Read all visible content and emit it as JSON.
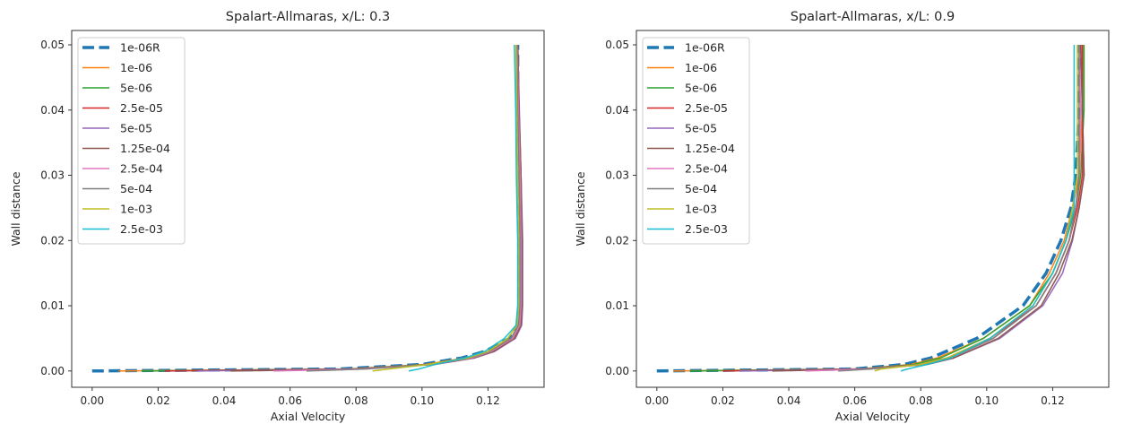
{
  "chart_data": [
    {
      "type": "line",
      "title": "Spalart-Allmaras, x/L: 0.3",
      "xlabel": "Axial Velocity",
      "ylabel": "Wall distance",
      "xlim": [
        -0.0062,
        0.137
      ],
      "ylim": [
        -0.0025,
        0.0522
      ],
      "xticks": [
        "0.00",
        "0.02",
        "0.04",
        "0.06",
        "0.08",
        "0.10",
        "0.12"
      ],
      "yticks": [
        "0.00",
        "0.01",
        "0.02",
        "0.03",
        "0.04",
        "0.05"
      ],
      "grid": false,
      "legend_position": "upper-left",
      "series": [
        {
          "name": "1e-06R",
          "color": "#1f77b4",
          "dashed": true,
          "x": [
            0,
            0.075,
            0.1,
            0.112,
            0.119,
            0.1265,
            0.129,
            0.1295,
            0.1295,
            0.1295,
            0.129,
            0.129
          ],
          "y": [
            0,
            0.0003,
            0.001,
            0.002,
            0.003,
            0.005,
            0.007,
            0.01,
            0.02,
            0.03,
            0.04,
            0.05
          ]
        },
        {
          "name": "1e-06",
          "color": "#ff7f0e",
          "x": [
            0.008,
            0.078,
            0.101,
            0.113,
            0.12,
            0.127,
            0.1292,
            0.1297,
            0.1297,
            0.1295,
            0.129,
            0.129
          ],
          "y": [
            0,
            0.0003,
            0.001,
            0.002,
            0.003,
            0.005,
            0.007,
            0.01,
            0.02,
            0.03,
            0.04,
            0.05
          ]
        },
        {
          "name": "5e-06",
          "color": "#2ca02c",
          "x": [
            0.015,
            0.079,
            0.102,
            0.114,
            0.121,
            0.1275,
            0.1295,
            0.13,
            0.13,
            0.1298,
            0.1292,
            0.129
          ],
          "y": [
            0,
            0.0003,
            0.001,
            0.002,
            0.003,
            0.005,
            0.007,
            0.01,
            0.02,
            0.03,
            0.04,
            0.05
          ]
        },
        {
          "name": "2.5e-05",
          "color": "#d62728",
          "x": [
            0.022,
            0.08,
            0.103,
            0.115,
            0.1215,
            0.128,
            0.13,
            0.1302,
            0.1302,
            0.13,
            0.1294,
            0.129
          ],
          "y": [
            0,
            0.0003,
            0.001,
            0.002,
            0.003,
            0.005,
            0.007,
            0.01,
            0.02,
            0.03,
            0.04,
            0.05
          ]
        },
        {
          "name": "5e-05",
          "color": "#9467bd",
          "x": [
            0.032,
            0.081,
            0.104,
            0.116,
            0.122,
            0.1283,
            0.1302,
            0.1305,
            0.1305,
            0.13,
            0.1295,
            0.129
          ],
          "y": [
            0,
            0.0003,
            0.001,
            0.002,
            0.003,
            0.005,
            0.007,
            0.01,
            0.02,
            0.03,
            0.04,
            0.05
          ]
        },
        {
          "name": "1.25e-04",
          "color": "#8c564b",
          "x": [
            0.042,
            0.081,
            0.1035,
            0.1155,
            0.1218,
            0.128,
            0.13,
            0.1303,
            0.1303,
            0.13,
            0.1294,
            0.129
          ],
          "y": [
            0,
            0.0003,
            0.001,
            0.002,
            0.003,
            0.005,
            0.007,
            0.01,
            0.02,
            0.03,
            0.04,
            0.05
          ]
        },
        {
          "name": "2.5e-04",
          "color": "#e377c2",
          "x": [
            0.055,
            0.082,
            0.103,
            0.115,
            0.121,
            0.1275,
            0.1296,
            0.13,
            0.13,
            0.1297,
            0.1292,
            0.1288
          ],
          "y": [
            0,
            0.0003,
            0.001,
            0.002,
            0.003,
            0.005,
            0.007,
            0.01,
            0.02,
            0.03,
            0.04,
            0.05
          ]
        },
        {
          "name": "5e-04",
          "color": "#7f7f7f",
          "x": [
            0.065,
            0.083,
            0.1025,
            0.1145,
            0.1205,
            0.127,
            0.1292,
            0.1297,
            0.1297,
            0.1294,
            0.129,
            0.1287
          ],
          "y": [
            0,
            0.0003,
            0.001,
            0.002,
            0.003,
            0.005,
            0.007,
            0.01,
            0.02,
            0.03,
            0.04,
            0.05
          ]
        },
        {
          "name": "1e-03",
          "color": "#bcbd22",
          "x": [
            0.085,
            0.09,
            0.102,
            0.114,
            0.12,
            0.126,
            0.1288,
            0.1293,
            0.1293,
            0.129,
            0.1287,
            0.1285
          ],
          "y": [
            0,
            0.0003,
            0.001,
            0.002,
            0.003,
            0.005,
            0.007,
            0.01,
            0.02,
            0.03,
            0.04,
            0.05
          ]
        },
        {
          "name": "2.5e-03",
          "color": "#17becf",
          "x": [
            0.096,
            0.099,
            0.104,
            0.113,
            0.119,
            0.125,
            0.1285,
            0.129,
            0.129,
            0.1286,
            0.1284,
            0.128
          ],
          "y": [
            0,
            0.0003,
            0.001,
            0.002,
            0.003,
            0.005,
            0.007,
            0.01,
            0.02,
            0.03,
            0.04,
            0.05
          ]
        }
      ]
    },
    {
      "type": "line",
      "title": "Spalart-Allmaras, x/L: 0.9",
      "xlabel": "Axial Velocity",
      "ylabel": "Wall distance",
      "xlim": [
        -0.0062,
        0.137
      ],
      "ylim": [
        -0.0025,
        0.0522
      ],
      "xticks": [
        "0.00",
        "0.02",
        "0.04",
        "0.06",
        "0.08",
        "0.10",
        "0.12"
      ],
      "yticks": [
        "0.00",
        "0.01",
        "0.02",
        "0.03",
        "0.04",
        "0.05"
      ],
      "grid": false,
      "legend_position": "upper-left",
      "series": [
        {
          "name": "1e-06R",
          "color": "#1f77b4",
          "dashed": true,
          "x": [
            0,
            0.06,
            0.075,
            0.083,
            0.097,
            0.111,
            0.118,
            0.1225,
            0.1255,
            0.127,
            0.128,
            0.128
          ],
          "y": [
            0,
            0.0003,
            0.001,
            0.002,
            0.005,
            0.01,
            0.015,
            0.02,
            0.025,
            0.03,
            0.04,
            0.05
          ]
        },
        {
          "name": "1e-06",
          "color": "#ff7f0e",
          "x": [
            0.005,
            0.062,
            0.077,
            0.085,
            0.099,
            0.113,
            0.119,
            0.1235,
            0.126,
            0.128,
            0.129,
            0.129
          ],
          "y": [
            0,
            0.0003,
            0.001,
            0.002,
            0.005,
            0.01,
            0.015,
            0.02,
            0.025,
            0.03,
            0.04,
            0.05
          ]
        },
        {
          "name": "5e-06",
          "color": "#2ca02c",
          "x": [
            0.01,
            0.062,
            0.078,
            0.086,
            0.099,
            0.113,
            0.12,
            0.124,
            0.127,
            0.1285,
            0.1295,
            0.1295
          ],
          "y": [
            0,
            0.0003,
            0.001,
            0.002,
            0.005,
            0.01,
            0.015,
            0.02,
            0.025,
            0.03,
            0.04,
            0.05
          ]
        },
        {
          "name": "2.5e-05",
          "color": "#d62728",
          "x": [
            0.02,
            0.063,
            0.08,
            0.088,
            0.101,
            0.115,
            0.121,
            0.125,
            0.1275,
            0.129,
            0.129,
            0.129
          ],
          "y": [
            0,
            0.0003,
            0.001,
            0.002,
            0.005,
            0.01,
            0.015,
            0.02,
            0.025,
            0.03,
            0.04,
            0.05
          ]
        },
        {
          "name": "5e-05",
          "color": "#9467bd",
          "x": [
            0.025,
            0.064,
            0.082,
            0.09,
            0.104,
            0.117,
            0.123,
            0.126,
            0.128,
            0.1295,
            0.129,
            0.1285
          ],
          "y": [
            0,
            0.0003,
            0.001,
            0.002,
            0.005,
            0.01,
            0.015,
            0.02,
            0.025,
            0.03,
            0.04,
            0.05
          ]
        },
        {
          "name": "1.25e-04",
          "color": "#8c564b",
          "x": [
            0.035,
            0.064,
            0.082,
            0.09,
            0.1035,
            0.1165,
            0.122,
            0.1258,
            0.128,
            0.1295,
            0.129,
            0.1285
          ],
          "y": [
            0,
            0.0003,
            0.001,
            0.002,
            0.005,
            0.01,
            0.015,
            0.02,
            0.025,
            0.03,
            0.04,
            0.05
          ]
        },
        {
          "name": "2.5e-04",
          "color": "#e377c2",
          "x": [
            0.045,
            0.064,
            0.081,
            0.089,
            0.102,
            0.115,
            0.121,
            0.125,
            0.127,
            0.128,
            0.1285,
            0.128
          ],
          "y": [
            0,
            0.0003,
            0.001,
            0.002,
            0.005,
            0.01,
            0.015,
            0.02,
            0.025,
            0.03,
            0.04,
            0.05
          ]
        },
        {
          "name": "5e-04",
          "color": "#7f7f7f",
          "x": [
            0.055,
            0.065,
            0.081,
            0.089,
            0.102,
            0.115,
            0.121,
            0.125,
            0.127,
            0.128,
            0.128,
            0.128
          ],
          "y": [
            0,
            0.0003,
            0.001,
            0.002,
            0.005,
            0.01,
            0.015,
            0.02,
            0.025,
            0.03,
            0.04,
            0.05
          ]
        },
        {
          "name": "1e-03",
          "color": "#bcbd22",
          "x": [
            0.066,
            0.068,
            0.08,
            0.088,
            0.101,
            0.114,
            0.12,
            0.124,
            0.126,
            0.1275,
            0.1275,
            0.1275
          ],
          "y": [
            0,
            0.0003,
            0.001,
            0.002,
            0.005,
            0.01,
            0.015,
            0.02,
            0.025,
            0.03,
            0.04,
            0.05
          ]
        },
        {
          "name": "2.5e-03",
          "color": "#17becf",
          "x": [
            0.074,
            0.076,
            0.082,
            0.089,
            0.101,
            0.114,
            0.12,
            0.124,
            0.1265,
            0.1265,
            0.1265,
            0.1265
          ],
          "y": [
            0,
            0.0003,
            0.001,
            0.002,
            0.005,
            0.01,
            0.015,
            0.02,
            0.025,
            0.03,
            0.04,
            0.05
          ]
        }
      ]
    }
  ]
}
